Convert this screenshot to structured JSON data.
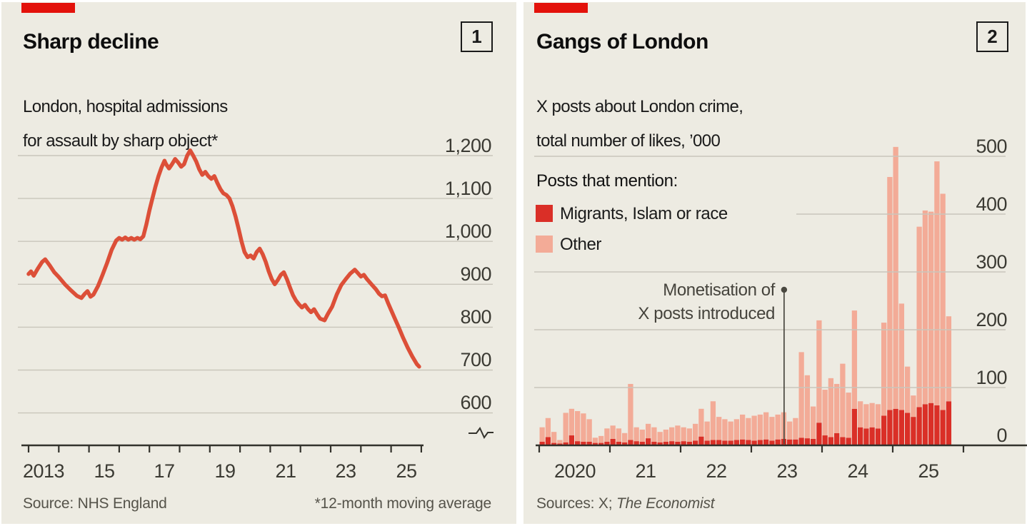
{
  "colors": {
    "background": "#edebe2",
    "red_tab": "#e3120b",
    "line_red": "#dc4f38",
    "bar_red": "#da2f27",
    "bar_pink": "#f3ab97",
    "grid": "#c9c6bb",
    "axis": "#33322c",
    "annotation": "#4a4840"
  },
  "panel1": {
    "index_label": "1",
    "title": "Sharp decline",
    "subtitle_line1": "London, hospital admissions",
    "subtitle_line2": "for assault by sharp object*",
    "source": "Source: NHS England",
    "footnote": "*12-month moving average",
    "y_ticks": [
      "1,200",
      "1,100",
      "1,000",
      "900",
      "800",
      "700",
      "600"
    ],
    "x_ticks": [
      "2013",
      "15",
      "17",
      "19",
      "21",
      "23",
      "25"
    ]
  },
  "panel2": {
    "index_label": "2",
    "title": "Gangs of London",
    "subtitle_line1": "X posts about London crime,",
    "subtitle_line2": "total number of likes, ’000",
    "legend_title": "Posts that mention:",
    "legend_item1": "Migrants, Islam or race",
    "legend_item2": "Other",
    "annotation_line1": "Monetisation of",
    "annotation_line2": "X posts introduced",
    "sources_prefix": "Sources: X; ",
    "sources_italic": "The Economist",
    "y_ticks": [
      "500",
      "400",
      "300",
      "200",
      "100",
      "0"
    ],
    "x_ticks": [
      "2020",
      "21",
      "22",
      "23",
      "24",
      "25"
    ]
  },
  "chart_data": [
    {
      "type": "line",
      "title": "Sharp decline",
      "subtitle": "London, hospital admissions for assault by sharp object*",
      "ylabel": "admissions, 12-month moving average",
      "ylim": [
        600,
        1250
      ],
      "y_gridlines": [
        600,
        700,
        800,
        900,
        1000,
        1100,
        1200
      ],
      "x_range": [
        2013,
        2026
      ],
      "x_tick_interval_years": 1,
      "x_labelled_years": [
        2013,
        2015,
        2017,
        2019,
        2021,
        2023,
        2025
      ],
      "grid": true,
      "axis_break_marker": true,
      "points": [
        [
          2013.0,
          924
        ],
        [
          2013.08,
          930
        ],
        [
          2013.17,
          920
        ],
        [
          2013.3,
          936
        ],
        [
          2013.45,
          952
        ],
        [
          2013.55,
          958
        ],
        [
          2013.7,
          944
        ],
        [
          2013.85,
          928
        ],
        [
          2014.0,
          917
        ],
        [
          2014.2,
          900
        ],
        [
          2014.4,
          886
        ],
        [
          2014.6,
          873
        ],
        [
          2014.75,
          868
        ],
        [
          2014.85,
          877
        ],
        [
          2014.95,
          884
        ],
        [
          2015.05,
          871
        ],
        [
          2015.15,
          876
        ],
        [
          2015.3,
          896
        ],
        [
          2015.45,
          922
        ],
        [
          2015.6,
          950
        ],
        [
          2015.75,
          980
        ],
        [
          2015.9,
          1002
        ],
        [
          2016.0,
          1008
        ],
        [
          2016.1,
          1004
        ],
        [
          2016.2,
          1009
        ],
        [
          2016.3,
          1004
        ],
        [
          2016.4,
          1008
        ],
        [
          2016.5,
          1004
        ],
        [
          2016.6,
          1008
        ],
        [
          2016.7,
          1005
        ],
        [
          2016.8,
          1012
        ],
        [
          2016.9,
          1040
        ],
        [
          2017.0,
          1072
        ],
        [
          2017.1,
          1100
        ],
        [
          2017.2,
          1128
        ],
        [
          2017.3,
          1152
        ],
        [
          2017.4,
          1172
        ],
        [
          2017.5,
          1188
        ],
        [
          2017.55,
          1180
        ],
        [
          2017.65,
          1170
        ],
        [
          2017.75,
          1180
        ],
        [
          2017.85,
          1192
        ],
        [
          2017.95,
          1184
        ],
        [
          2018.05,
          1174
        ],
        [
          2018.15,
          1180
        ],
        [
          2018.25,
          1200
        ],
        [
          2018.35,
          1212
        ],
        [
          2018.45,
          1200
        ],
        [
          2018.55,
          1186
        ],
        [
          2018.65,
          1168
        ],
        [
          2018.75,
          1155
        ],
        [
          2018.85,
          1162
        ],
        [
          2018.95,
          1152
        ],
        [
          2019.05,
          1146
        ],
        [
          2019.15,
          1152
        ],
        [
          2019.25,
          1136
        ],
        [
          2019.35,
          1122
        ],
        [
          2019.45,
          1112
        ],
        [
          2019.55,
          1108
        ],
        [
          2019.65,
          1100
        ],
        [
          2019.75,
          1082
        ],
        [
          2019.85,
          1058
        ],
        [
          2019.95,
          1030
        ],
        [
          2020.05,
          1000
        ],
        [
          2020.15,
          975
        ],
        [
          2020.25,
          963
        ],
        [
          2020.35,
          967
        ],
        [
          2020.45,
          960
        ],
        [
          2020.55,
          975
        ],
        [
          2020.65,
          983
        ],
        [
          2020.75,
          970
        ],
        [
          2020.85,
          952
        ],
        [
          2020.95,
          930
        ],
        [
          2021.05,
          912
        ],
        [
          2021.15,
          900
        ],
        [
          2021.25,
          910
        ],
        [
          2021.35,
          922
        ],
        [
          2021.45,
          928
        ],
        [
          2021.55,
          912
        ],
        [
          2021.65,
          893
        ],
        [
          2021.75,
          875
        ],
        [
          2021.85,
          862
        ],
        [
          2021.95,
          853
        ],
        [
          2022.05,
          846
        ],
        [
          2022.15,
          852
        ],
        [
          2022.25,
          842
        ],
        [
          2022.35,
          835
        ],
        [
          2022.45,
          842
        ],
        [
          2022.55,
          830
        ],
        [
          2022.65,
          820
        ],
        [
          2022.8,
          816
        ],
        [
          2022.9,
          830
        ],
        [
          2023.05,
          848
        ],
        [
          2023.2,
          876
        ],
        [
          2023.35,
          898
        ],
        [
          2023.5,
          912
        ],
        [
          2023.65,
          925
        ],
        [
          2023.8,
          934
        ],
        [
          2023.9,
          926
        ],
        [
          2024.0,
          918
        ],
        [
          2024.1,
          922
        ],
        [
          2024.2,
          912
        ],
        [
          2024.35,
          900
        ],
        [
          2024.5,
          888
        ],
        [
          2024.6,
          878
        ],
        [
          2024.7,
          872
        ],
        [
          2024.8,
          874
        ],
        [
          2024.9,
          856
        ],
        [
          2025.0,
          840
        ],
        [
          2025.1,
          824
        ],
        [
          2025.25,
          800
        ],
        [
          2025.4,
          775
        ],
        [
          2025.55,
          752
        ],
        [
          2025.7,
          732
        ],
        [
          2025.85,
          714
        ],
        [
          2025.93,
          708
        ]
      ]
    },
    {
      "type": "stacked_bar",
      "title": "Gangs of London",
      "subtitle": "X posts about London crime, total number of likes, '000",
      "start_month": "2020-01",
      "bar_period_months": 1,
      "ylim": [
        0,
        520
      ],
      "y_gridlines": [
        0,
        100,
        200,
        300,
        400,
        500
      ],
      "x_labels": [
        "2020",
        "21",
        "22",
        "23",
        "24",
        "25"
      ],
      "legend_position": "top-left",
      "annotation": {
        "text": "Monetisation of X posts introduced",
        "month_index": 41.5
      },
      "series": [
        {
          "name": "Migrants, Islam or race",
          "color": "#da2f27",
          "values": [
            5,
            13,
            3,
            2,
            4,
            16,
            6,
            5,
            5,
            3,
            3,
            5,
            10,
            5,
            4,
            8,
            6,
            5,
            11,
            5,
            4,
            5,
            6,
            5,
            6,
            5,
            7,
            14,
            7,
            8,
            8,
            7,
            7,
            8,
            9,
            8,
            7,
            8,
            9,
            7,
            9,
            10,
            9,
            9,
            12,
            11,
            10,
            38,
            16,
            13,
            20,
            13,
            12,
            62,
            30,
            28,
            30,
            28,
            50,
            60,
            62,
            60,
            55,
            48,
            65,
            70,
            72,
            68,
            60,
            75
          ]
        },
        {
          "name": "Other",
          "color": "#f3ab97",
          "values": [
            25,
            33,
            19,
            6,
            51,
            46,
            52,
            49,
            39,
            9,
            12,
            23,
            23,
            23,
            16,
            97,
            24,
            21,
            25,
            25,
            18,
            21,
            24,
            28,
            24,
            23,
            29,
            48,
            33,
            67,
            40,
            37,
            33,
            36,
            43,
            38,
            43,
            44,
            47,
            41,
            43,
            46,
            31,
            37,
            148,
            109,
            56,
            177,
            79,
            102,
            85,
            127,
            78,
            170,
            45,
            42,
            42,
            42,
            161,
            403,
            453,
            184,
            80,
            37,
            312,
            335,
            331,
            422,
            374,
            147
          ]
        }
      ]
    }
  ]
}
